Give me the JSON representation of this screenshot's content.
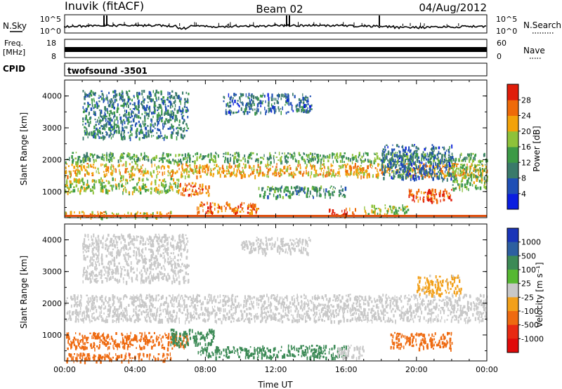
{
  "header": {
    "title": "Inuvik (fitACF)",
    "beam": "Beam 02",
    "date": "04/Aug/2012"
  },
  "strips": {
    "nsky": {
      "label": "N.Sky",
      "ticks": [
        "10^5",
        "10^0"
      ]
    },
    "nsearch": {
      "label": "N.Search",
      "ticks": [
        "10^5",
        "10^0"
      ]
    },
    "freq": {
      "label": "Freq.",
      "unit": "[MHz]",
      "ticks": [
        "18",
        "8"
      ]
    },
    "nave": {
      "label": "Nave",
      "ticks": [
        "60",
        "0"
      ]
    },
    "cpid": {
      "label": "CPID",
      "value": "twofsound  -3501"
    }
  },
  "chart_data": [
    {
      "type": "heatmap",
      "name": "power",
      "xlabel": "",
      "ylabel": "Slant Range [km]",
      "xlim": [
        0,
        24
      ],
      "ylim": [
        180,
        4500
      ],
      "yticks": [
        1000,
        2000,
        3000,
        4000
      ],
      "colorbar": {
        "label": "Power [dB]",
        "ticks": [
          "4",
          "8",
          "12",
          "16",
          "20",
          "24",
          "28"
        ],
        "colors": [
          "#0a1ee0",
          "#1f4fb5",
          "#3a7a6a",
          "#3c9a46",
          "#8ec23a",
          "#f2a20a",
          "#ee6a08",
          "#e01d0a"
        ]
      },
      "regions": [
        {
          "x": [
            0,
            24
          ],
          "y": [
            1500,
            1900
          ],
          "v": 22
        },
        {
          "x": [
            0,
            24
          ],
          "y": [
            1950,
            2250
          ],
          "v": 14
        },
        {
          "x": [
            0,
            6.5
          ],
          "y": [
            1000,
            1450
          ],
          "v": 18
        },
        {
          "x": [
            6.5,
            8.2
          ],
          "y": [
            900,
            1300
          ],
          "v": 26
        },
        {
          "x": [
            7.5,
            11
          ],
          "y": [
            350,
            700
          ],
          "v": 26
        },
        {
          "x": [
            11,
            16
          ],
          "y": [
            850,
            1200
          ],
          "v": 12
        },
        {
          "x": [
            15,
            16.5
          ],
          "y": [
            250,
            500
          ],
          "v": 28
        },
        {
          "x": [
            17,
            19.5
          ],
          "y": [
            300,
            600
          ],
          "v": 18
        },
        {
          "x": [
            19.5,
            22
          ],
          "y": [
            700,
            1100
          ],
          "v": 28
        },
        {
          "x": [
            0,
            6
          ],
          "y": [
            220,
            400
          ],
          "v": 20
        },
        {
          "x": [
            1,
            7
          ],
          "y": [
            2700,
            4200
          ],
          "v": 10
        },
        {
          "x": [
            9,
            14
          ],
          "y": [
            3500,
            4100
          ],
          "v": 8
        },
        {
          "x": [
            18,
            22
          ],
          "y": [
            1400,
            2500
          ],
          "v": 8
        },
        {
          "x": [
            22,
            24
          ],
          "y": [
            1100,
            1900
          ],
          "v": 16
        }
      ]
    },
    {
      "type": "heatmap",
      "name": "velocity",
      "xlabel": "Time UT",
      "ylabel": "Slant Range [km]",
      "xlim": [
        0,
        24
      ],
      "ylim": [
        180,
        4500
      ],
      "xticks": [
        "00:00",
        "04:00",
        "08:00",
        "12:00",
        "16:00",
        "20:00",
        "00:00"
      ],
      "yticks": [
        1000,
        2000,
        3000,
        4000
      ],
      "colorbar": {
        "label": "Velocity [m s⁻¹]",
        "ticks": [
          "1000",
          "500",
          "100",
          "25",
          "-25",
          "-100",
          "-500",
          "-1000"
        ],
        "colors": [
          "#1a34b8",
          "#2d5fa0",
          "#3c8a56",
          "#56b832",
          "#c8c8c8",
          "#f2a01a",
          "#ee6a10",
          "#e82a12",
          "#e00a0a"
        ]
      },
      "regions": [
        {
          "x": [
            0,
            24
          ],
          "y": [
            1450,
            2300
          ],
          "v": 0
        },
        {
          "x": [
            0,
            7
          ],
          "y": [
            600,
            1100
          ],
          "v": -300
        },
        {
          "x": [
            0,
            6
          ],
          "y": [
            200,
            450
          ],
          "v": -350
        },
        {
          "x": [
            6,
            8.5
          ],
          "y": [
            700,
            1200
          ],
          "v": 150
        },
        {
          "x": [
            7.5,
            11
          ],
          "y": [
            300,
            650
          ],
          "v": 200
        },
        {
          "x": [
            11,
            16
          ],
          "y": [
            300,
            700
          ],
          "v": 150
        },
        {
          "x": [
            15.5,
            17
          ],
          "y": [
            300,
            700
          ],
          "v": 0
        },
        {
          "x": [
            18.5,
            22
          ],
          "y": [
            600,
            1100
          ],
          "v": -300
        },
        {
          "x": [
            1,
            7
          ],
          "y": [
            2700,
            4200
          ],
          "v": 0
        },
        {
          "x": [
            10,
            14
          ],
          "y": [
            3600,
            4100
          ],
          "v": 0
        },
        {
          "x": [
            20,
            22.5
          ],
          "y": [
            2300,
            2900
          ],
          "v": -50
        }
      ]
    }
  ]
}
